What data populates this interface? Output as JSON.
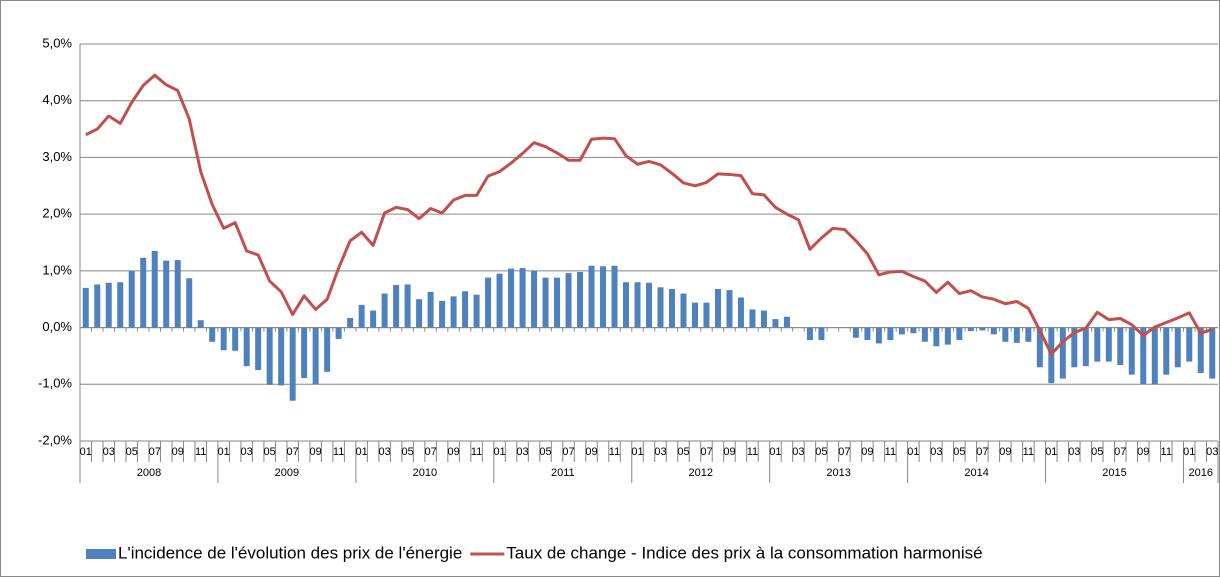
{
  "chart_data": {
    "type": "bar-line",
    "categories": [
      "01",
      null,
      "03",
      null,
      "05",
      null,
      "07",
      null,
      "09",
      null,
      "11",
      null,
      "01",
      null,
      "03",
      null,
      "05",
      null,
      "07",
      null,
      "09",
      null,
      "11",
      null,
      "01",
      null,
      "03",
      null,
      "05",
      null,
      "07",
      null,
      "09",
      null,
      "11",
      null,
      "01",
      null,
      "03",
      null,
      "05",
      null,
      "07",
      null,
      "09",
      null,
      "11",
      null,
      "01",
      null,
      "03",
      null,
      "05",
      null,
      "07",
      null,
      "09",
      null,
      "11",
      null,
      "01",
      null,
      "03",
      null,
      "05",
      null,
      "07",
      null,
      "09",
      null,
      "11",
      null,
      "01",
      null,
      "03",
      null,
      "05",
      null,
      "07",
      null,
      "09",
      null,
      "11",
      null,
      "01",
      null,
      "03",
      null,
      "05",
      null,
      "07",
      null,
      "09",
      null,
      "11",
      null,
      "01",
      null,
      "03"
    ],
    "years": [
      "2008",
      "2009",
      "2010",
      "2011",
      "2012",
      "2013",
      "2014",
      "2015",
      "2016"
    ],
    "series": [
      {
        "name": "L'incidence de l'évolution des prix de l'énergie",
        "type": "bar",
        "color": "#4f81bd",
        "values": [
          0.7,
          0.76,
          0.79,
          0.8,
          1.0,
          1.23,
          1.35,
          1.18,
          1.19,
          0.87,
          0.13,
          -0.25,
          -0.4,
          -0.41,
          -0.68,
          -0.75,
          -1.01,
          -1.02,
          -1.29,
          -0.89,
          -1.0,
          -0.78,
          -0.2,
          0.17,
          0.4,
          0.3,
          0.6,
          0.75,
          0.76,
          0.5,
          0.63,
          0.47,
          0.55,
          0.64,
          0.58,
          0.88,
          0.95,
          1.04,
          1.05,
          1.0,
          0.88,
          0.88,
          0.96,
          0.98,
          1.09,
          1.08,
          1.09,
          0.8,
          0.8,
          0.79,
          0.71,
          0.68,
          0.6,
          0.44,
          0.44,
          0.68,
          0.66,
          0.53,
          0.32,
          0.3,
          0.15,
          0.19,
          0.0,
          -0.22,
          -0.22,
          0.0,
          0.0,
          -0.18,
          -0.22,
          -0.28,
          -0.22,
          -0.12,
          -0.1,
          -0.25,
          -0.33,
          -0.3,
          -0.22,
          -0.06,
          -0.05,
          -0.12,
          -0.25,
          -0.27,
          -0.25,
          -0.7,
          -0.98,
          -0.9,
          -0.7,
          -0.68,
          -0.6,
          -0.6,
          -0.66,
          -0.83,
          -1.0,
          -1.0,
          -0.83,
          -0.7,
          -0.6,
          -0.8,
          -0.9
        ]
      },
      {
        "name": "Taux de change - Indice des prix à la consommation harmonisé",
        "type": "line",
        "color": "#c0504d",
        "values": [
          3.4,
          3.5,
          3.73,
          3.6,
          3.97,
          4.27,
          4.45,
          4.28,
          4.18,
          3.68,
          2.75,
          2.17,
          1.75,
          1.85,
          1.35,
          1.28,
          0.82,
          0.63,
          0.23,
          0.56,
          0.32,
          0.5,
          1.05,
          1.53,
          1.68,
          1.45,
          2.02,
          2.12,
          2.08,
          1.92,
          2.1,
          2.02,
          2.25,
          2.33,
          2.33,
          2.67,
          2.75,
          2.9,
          3.07,
          3.26,
          3.19,
          3.08,
          2.95,
          2.95,
          3.32,
          3.34,
          3.33,
          3.03,
          2.88,
          2.93,
          2.87,
          2.72,
          2.55,
          2.5,
          2.56,
          2.71,
          2.7,
          2.68,
          2.36,
          2.34,
          2.12,
          2.0,
          1.9,
          1.38,
          1.58,
          1.75,
          1.73,
          1.53,
          1.3,
          0.93,
          0.98,
          0.99,
          0.9,
          0.82,
          0.62,
          0.8,
          0.6,
          0.65,
          0.54,
          0.5,
          0.42,
          0.46,
          0.34,
          -0.05,
          -0.47,
          -0.25,
          -0.09,
          -0.01,
          0.27,
          0.14,
          0.16,
          0.05,
          -0.14,
          0.01,
          0.09,
          0.17,
          0.26,
          -0.1,
          -0.03
        ]
      }
    ],
    "ylim": [
      -2,
      5
    ],
    "yticks": [
      {
        "value": -2,
        "label": "-2,0%"
      },
      {
        "value": -1,
        "label": "-1,0%"
      },
      {
        "value": 0,
        "label": "0,0%"
      },
      {
        "value": 1,
        "label": "1,0%"
      },
      {
        "value": 2,
        "label": "2,0%"
      },
      {
        "value": 3,
        "label": "3,0%"
      },
      {
        "value": 4,
        "label": "4,0%"
      },
      {
        "value": 5,
        "label": "5,0%"
      }
    ],
    "grid": true
  }
}
